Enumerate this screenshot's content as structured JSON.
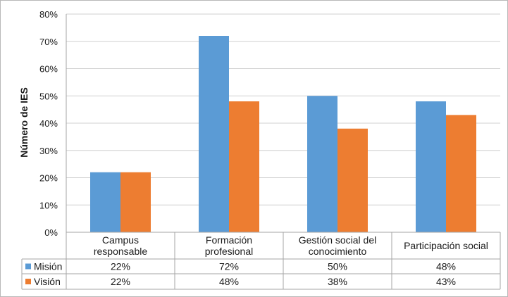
{
  "chart_data": {
    "type": "bar",
    "title": "",
    "ylabel": "Número de IES",
    "xlabel": "",
    "ylim": [
      0,
      80
    ],
    "ytick_step": 10,
    "y_tick_format": "percent",
    "categories": [
      [
        "Campus",
        "responsable"
      ],
      [
        "Formación",
        "profesional"
      ],
      [
        "Gestión social del",
        "conocimiento"
      ],
      [
        "Participación social"
      ]
    ],
    "series": [
      {
        "name": "Misión",
        "color": "#5b9bd5",
        "values": [
          22,
          72,
          50,
          48
        ],
        "labels": [
          "22%",
          "72%",
          "50%",
          "48%"
        ]
      },
      {
        "name": "Visión",
        "color": "#ed7d31",
        "values": [
          22,
          48,
          38,
          43
        ],
        "labels": [
          "22%",
          "48%",
          "38%",
          "43%"
        ]
      }
    ],
    "grid": true,
    "legend": "data-table"
  }
}
